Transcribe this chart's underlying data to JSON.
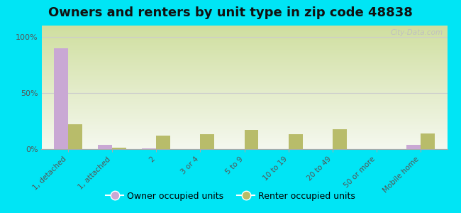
{
  "title": "Owners and renters by unit type in zip code 48838",
  "categories": [
    "1, detached",
    "1, attached",
    "2",
    "3 or 4",
    "5 to 9",
    "10 to 19",
    "20 to 49",
    "50 or more",
    "Mobile home"
  ],
  "owner_values": [
    90,
    4,
    0.5,
    0,
    0,
    0,
    0,
    0,
    4
  ],
  "renter_values": [
    22,
    1,
    12,
    13,
    17,
    13,
    18,
    0,
    14
  ],
  "owner_color": "#c9a8d4",
  "renter_color": "#b8bc6a",
  "background_outer": "#00e5f5",
  "title_fontsize": 13,
  "ylabel_ticks": [
    "0%",
    "50%",
    "100%"
  ],
  "ylabel_values": [
    0,
    50,
    100
  ],
  "ylim": [
    0,
    110
  ],
  "legend_owner": "Owner occupied units",
  "legend_renter": "Renter occupied units",
  "watermark": "City-Data.com",
  "plot_bg_top": "#f5f8ef",
  "plot_bg_bottom": "#d0dfa0"
}
